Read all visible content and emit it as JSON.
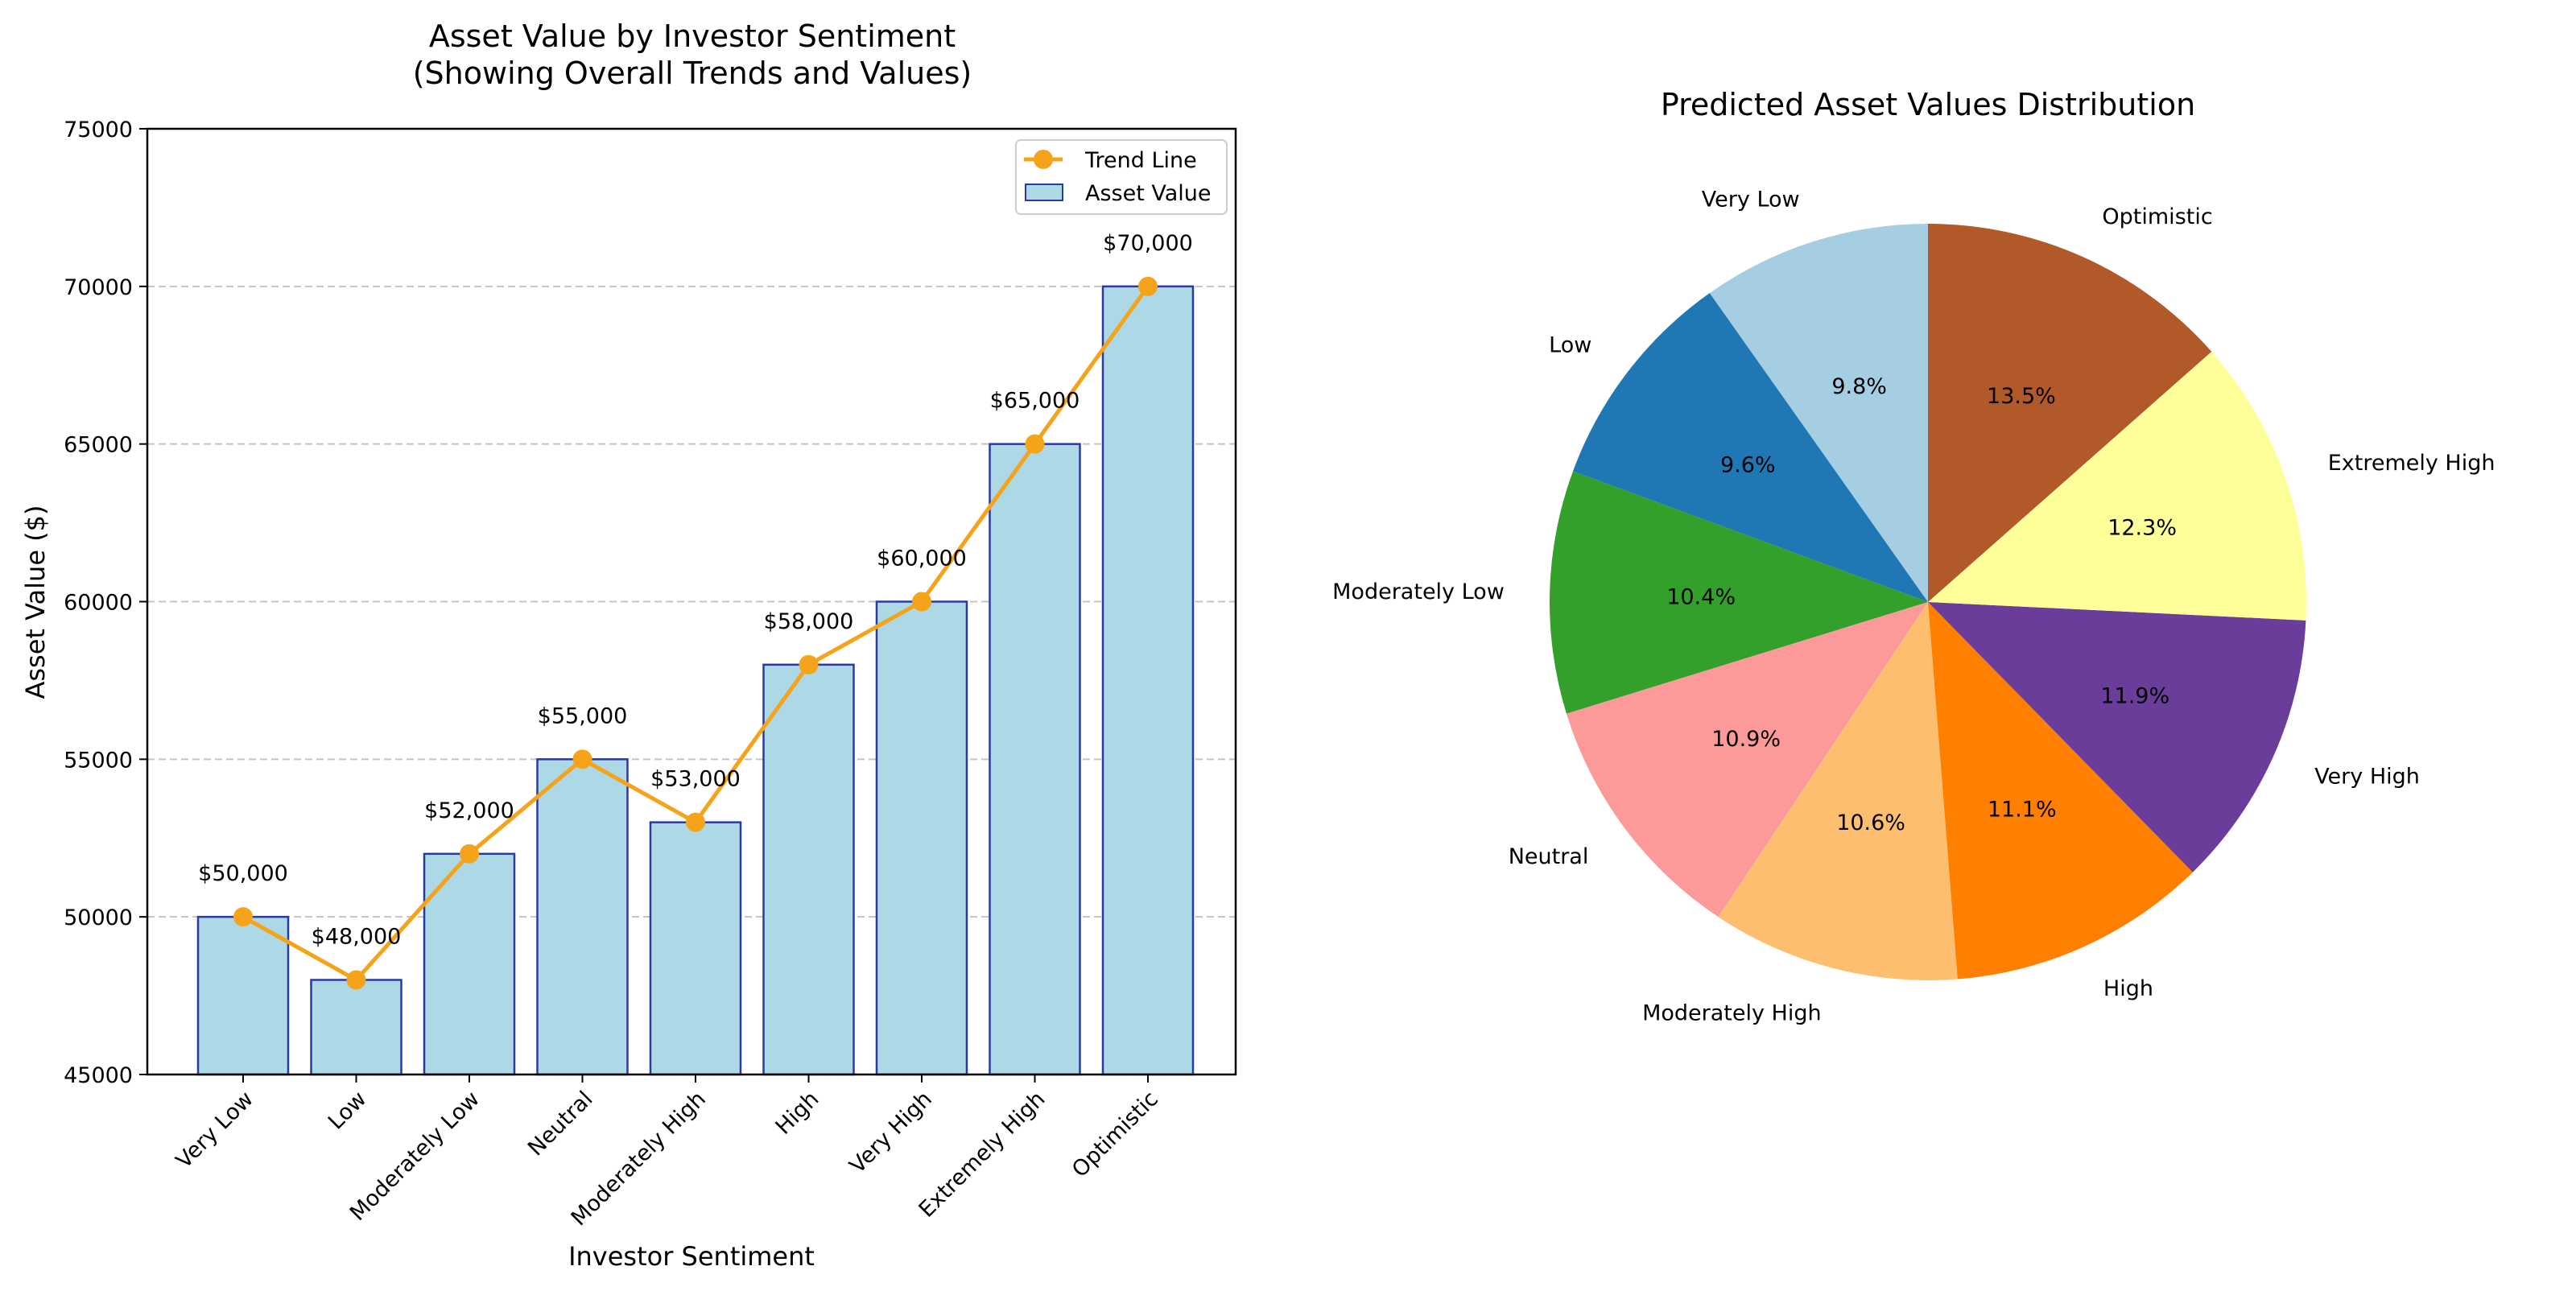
{
  "chart_data": [
    {
      "type": "bar",
      "title": "Asset Value by Investor Sentiment\n(Showing Overall Trends and Values)",
      "xlabel": "Investor Sentiment",
      "ylabel": "Asset Value ($)",
      "ylim": [
        45000,
        75000
      ],
      "yticks": [
        45000,
        50000,
        55000,
        60000,
        65000,
        70000,
        75000
      ],
      "grid": "y-dashed",
      "legend_position": "top-right",
      "categories": [
        "Very Low",
        "Low",
        "Moderately Low",
        "Neutral",
        "Moderately High",
        "High",
        "Very High",
        "Extremely High",
        "Optimistic"
      ],
      "series": [
        {
          "name": "Asset Value",
          "kind": "bar",
          "color": "#add8e6",
          "edge_color": "#2b3a9e",
          "values": [
            50000,
            48000,
            52000,
            55000,
            53000,
            58000,
            60000,
            65000,
            70000
          ]
        },
        {
          "name": "Trend Line",
          "kind": "line",
          "color": "#f5a31a",
          "values": [
            50000,
            48000,
            52000,
            55000,
            53000,
            58000,
            60000,
            65000,
            70000
          ]
        }
      ],
      "data_labels": [
        "$50,000",
        "$48,000",
        "$52,000",
        "$55,000",
        "$53,000",
        "$58,000",
        "$60,000",
        "$65,000",
        "$70,000"
      ]
    },
    {
      "type": "pie",
      "title": "Predicted Asset Values Distribution",
      "start": "top, counterclockwise",
      "labels": [
        "Very Low",
        "Low",
        "Moderately Low",
        "Neutral",
        "Moderately High",
        "High",
        "Very High",
        "Extremely High",
        "Optimistic"
      ],
      "values": [
        9.8,
        9.6,
        10.4,
        10.9,
        10.6,
        11.1,
        11.9,
        12.3,
        13.5
      ],
      "pct_labels": [
        "9.8%",
        "9.6%",
        "10.4%",
        "10.9%",
        "10.6%",
        "11.1%",
        "11.9%",
        "12.3%",
        "13.5%"
      ],
      "colors": [
        "#a6cee3",
        "#1f78b4",
        "#33a02c",
        "#fb9a99",
        "#fdbf6f",
        "#ff7f00",
        "#6a3d9a",
        "#ffff99",
        "#b15928"
      ]
    }
  ]
}
